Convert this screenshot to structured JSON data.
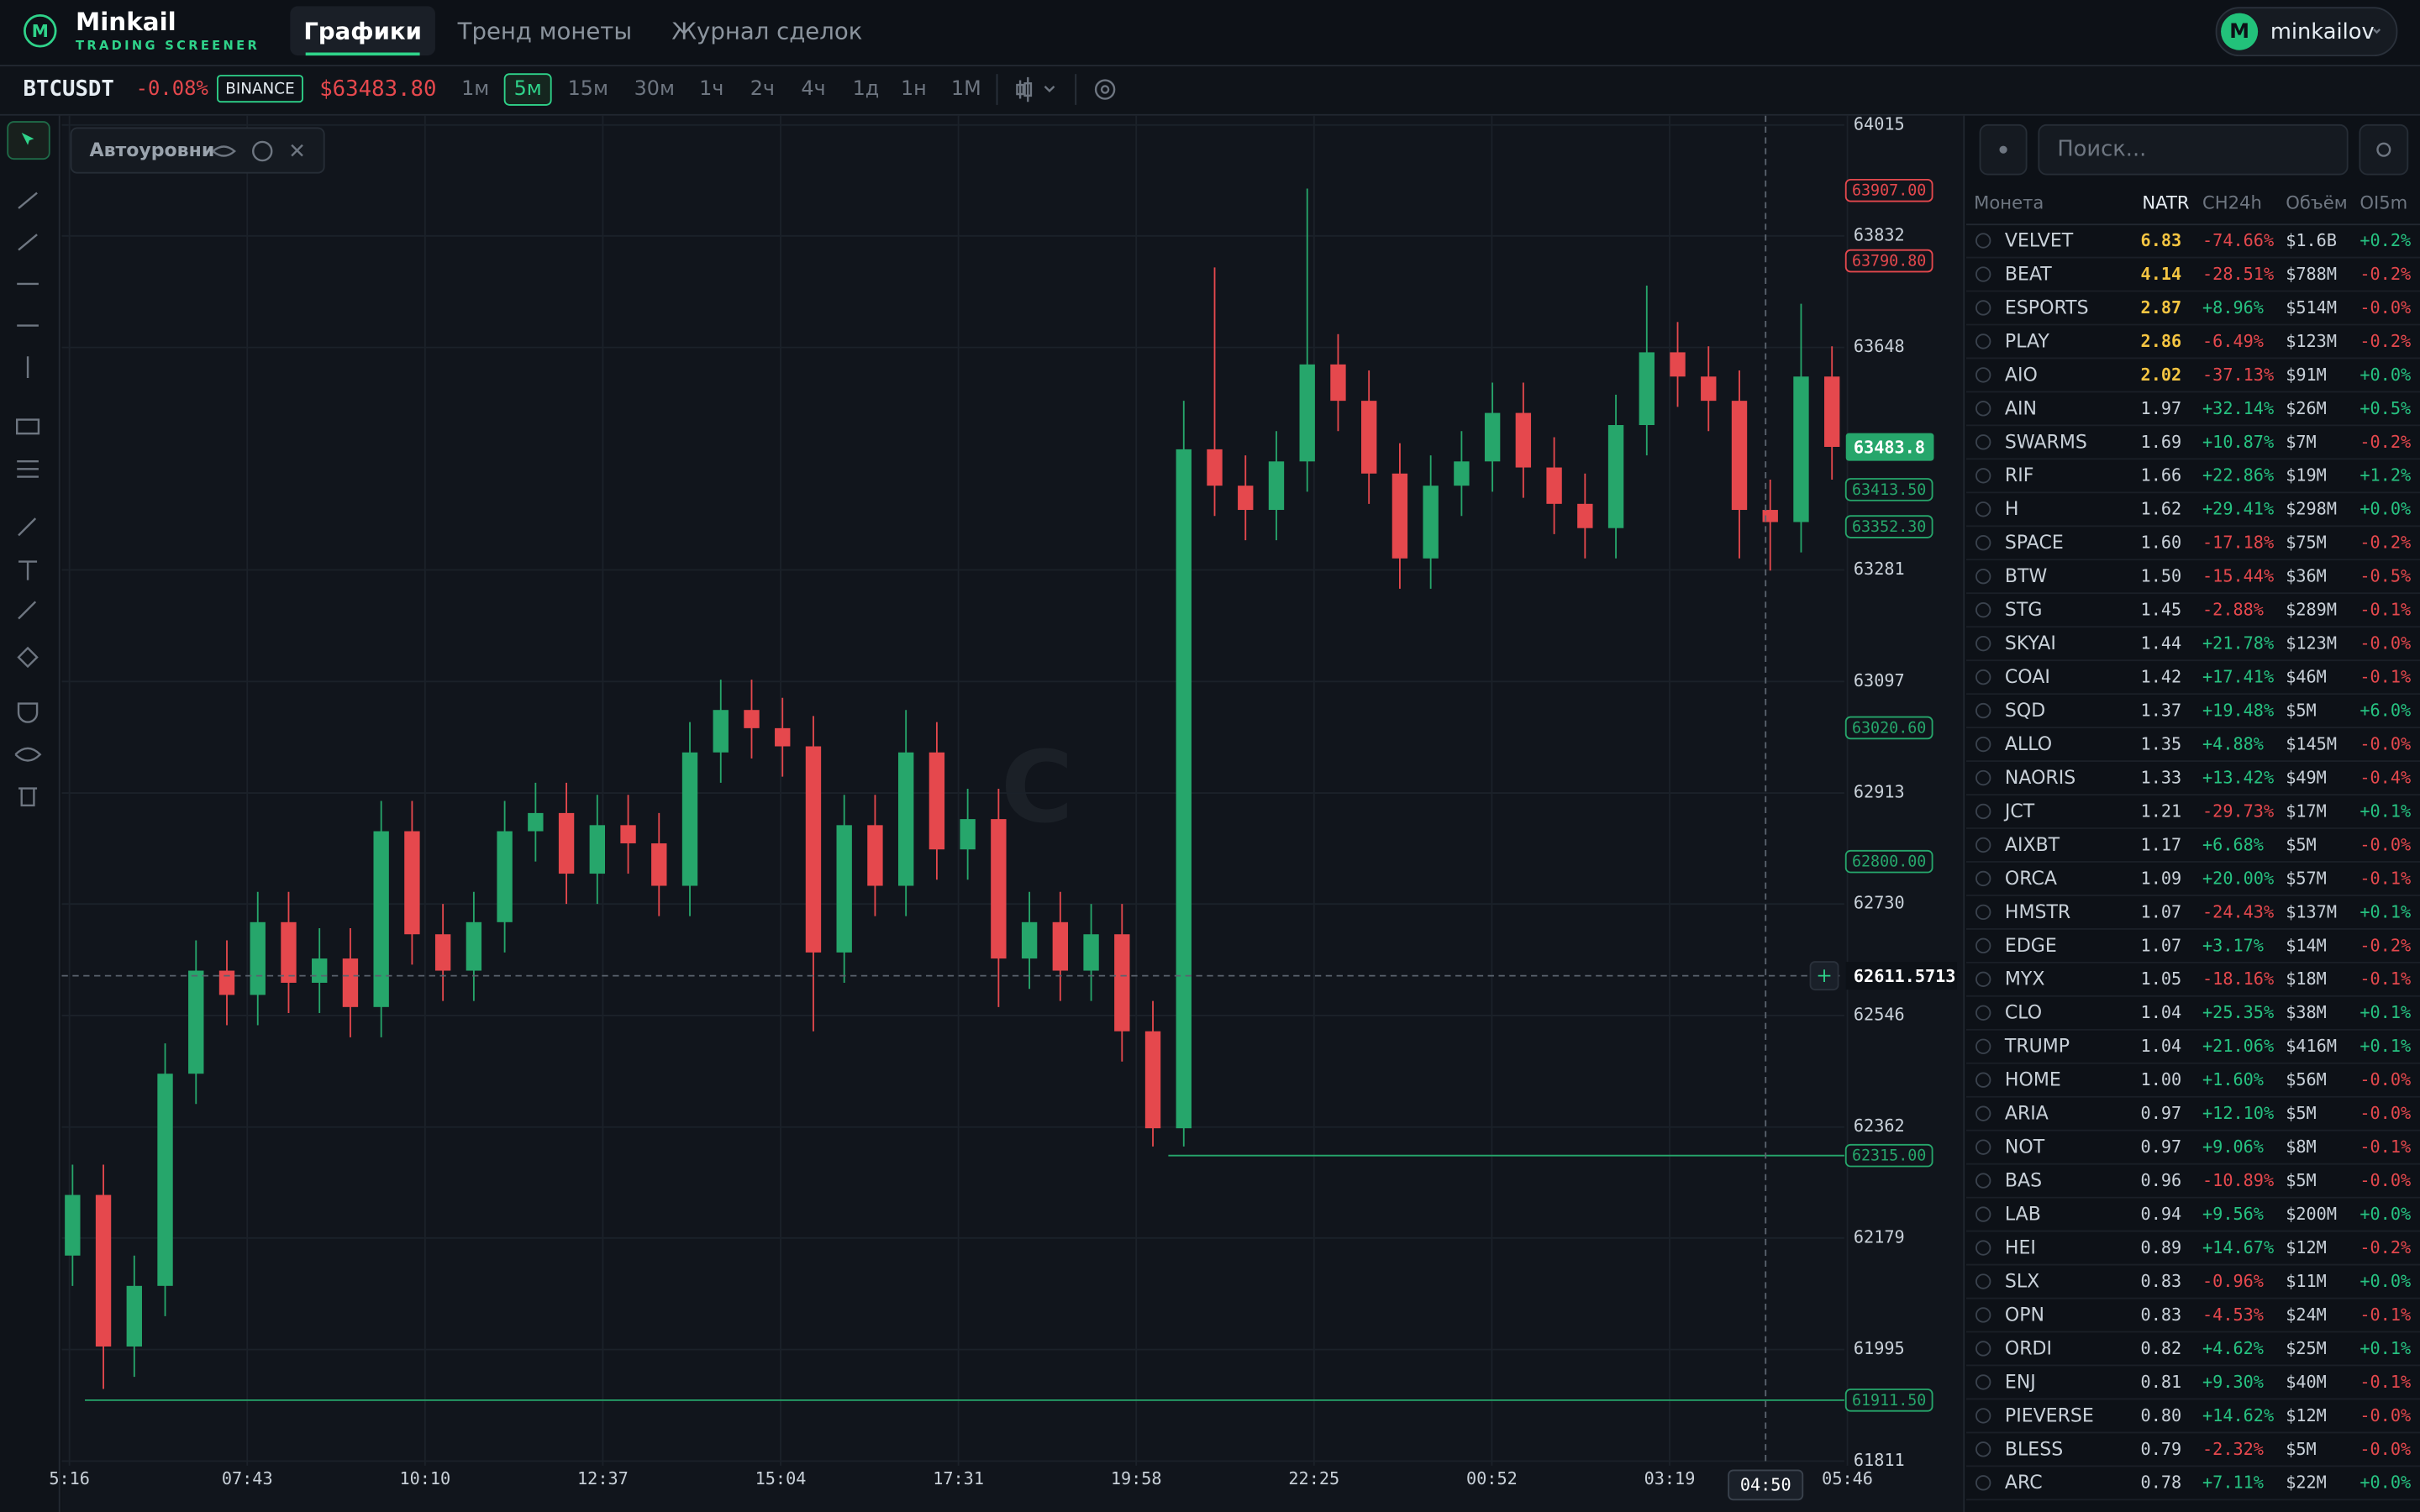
{
  "header": {
    "brand": "Minkail",
    "tagline": "TRADING SCREENER",
    "logo": "M",
    "tabs": [
      "Графики",
      "Тренд монеты",
      "Журнал сделок"
    ],
    "avatar": "M",
    "user": "minkailov"
  },
  "toolbar": {
    "symbol": "BTCUSDT",
    "change": "-0.08%",
    "exchange": "BINANCE",
    "price": "$63483.80",
    "intervals": [
      "1м",
      "5м",
      "15м",
      "30м",
      "1ч",
      "2ч",
      "4ч",
      "1д",
      "1н",
      "1М"
    ]
  },
  "indicator": "Автоуровни",
  "chart_data": {
    "type": "candlestick",
    "up_color": "#26a66b",
    "down_color": "#e5484d",
    "ylim": [
      61811,
      64015
    ],
    "yticks": [
      64015,
      63832,
      63648,
      63281,
      63097,
      62913,
      62730,
      62546,
      62362,
      62179,
      61995,
      61811
    ],
    "xticks": [
      "5:16",
      "07:43",
      "10:10",
      "12:37",
      "15:04",
      "17:31",
      "19:58",
      "22:25",
      "00:52",
      "03:19",
      "05:46"
    ],
    "open": [
      62150,
      62250,
      62000,
      62100,
      62450,
      62620,
      62580,
      62700,
      62600,
      62640,
      62560,
      62850,
      62680,
      62620,
      62700,
      62850,
      62880,
      62780,
      62860,
      62830,
      62760,
      62980,
      63050,
      63020,
      62990,
      62650,
      62860,
      62760,
      62980,
      62820,
      62870,
      62640,
      62700,
      62620,
      62680,
      62520,
      62360,
      63480,
      63420,
      63380,
      63460,
      63620,
      63560,
      63440,
      63300,
      63420,
      63460,
      63540,
      63450,
      63390,
      63350,
      63520,
      63640,
      63600,
      63560,
      63380,
      63360,
      63600
    ],
    "high": [
      62300,
      62300,
      62150,
      62500,
      62670,
      62670,
      62750,
      62750,
      62690,
      62690,
      62900,
      62900,
      62730,
      62750,
      62900,
      62930,
      62930,
      62910,
      62910,
      62880,
      63030,
      63100,
      63100,
      63070,
      63040,
      62910,
      62910,
      63050,
      63030,
      62920,
      62920,
      62750,
      62750,
      62730,
      62730,
      62570,
      63560,
      63780,
      63470,
      63510,
      63910,
      63670,
      63610,
      63490,
      63470,
      63510,
      63590,
      63590,
      63500,
      63440,
      63570,
      63750,
      63690,
      63650,
      63610,
      63430,
      63720,
      63650
    ],
    "low": [
      62100,
      61930,
      61950,
      62050,
      62400,
      62530,
      62530,
      62550,
      62550,
      62510,
      62510,
      62630,
      62570,
      62570,
      62650,
      62800,
      62730,
      62730,
      62780,
      62710,
      62710,
      62930,
      62970,
      62940,
      62520,
      62600,
      62710,
      62710,
      62770,
      62770,
      62560,
      62590,
      62570,
      62570,
      62470,
      62330,
      62330,
      63370,
      63330,
      63330,
      63410,
      63510,
      63390,
      63250,
      63250,
      63370,
      63410,
      63400,
      63340,
      63300,
      63300,
      63470,
      63550,
      63510,
      63300,
      63280,
      63310,
      63430
    ],
    "close": [
      62250,
      62000,
      62100,
      62450,
      62620,
      62580,
      62700,
      62600,
      62640,
      62560,
      62850,
      62680,
      62620,
      62700,
      62850,
      62880,
      62780,
      62860,
      62830,
      62760,
      62980,
      63050,
      63020,
      62990,
      62650,
      62860,
      62760,
      62980,
      62820,
      62870,
      62640,
      62700,
      62620,
      62680,
      62520,
      62360,
      63480,
      63420,
      63380,
      63460,
      63620,
      63560,
      63440,
      63300,
      63420,
      63460,
      63540,
      63450,
      63390,
      63350,
      63520,
      63640,
      63600,
      63560,
      63380,
      63360,
      63600,
      63484
    ],
    "last_price": 63483.8,
    "levels": [
      {
        "value": 63907,
        "label": "63907.00",
        "color": "#e5484d"
      },
      {
        "value": 63790.8,
        "label": "63790.80",
        "color": "#e5484d"
      },
      {
        "value": 63413.5,
        "label": "63413.50",
        "color": "#26a66b"
      },
      {
        "value": 63352.3,
        "label": "63352.30",
        "color": "#26a66b"
      },
      {
        "value": 63020.6,
        "label": "63020.60",
        "color": "#26a66b"
      },
      {
        "value": 62800,
        "label": "62800.00",
        "color": "#26a66b"
      },
      {
        "value": 62315,
        "label": "62315.00",
        "color": "#26a66b"
      },
      {
        "value": 61911.5,
        "label": "61911.50",
        "color": "#26a66b"
      }
    ],
    "crosshair": {
      "price": 62611.5713,
      "time": "04:50"
    }
  },
  "watchlist": {
    "search": "Поиск...",
    "columns": [
      "Монета",
      "NATR",
      "CH24h",
      "Объём",
      "OI5m"
    ],
    "rows": [
      [
        "VELVET",
        "6.83",
        "-74.66%",
        "$1.6B",
        "+0.2%"
      ],
      [
        "BEAT",
        "4.14",
        "-28.51%",
        "$788M",
        "-0.2%"
      ],
      [
        "ESPORTS",
        "2.87",
        "+8.96%",
        "$514M",
        "-0.0%"
      ],
      [
        "PLAY",
        "2.86",
        "-6.49%",
        "$123M",
        "-0.2%"
      ],
      [
        "AIO",
        "2.02",
        "-37.13%",
        "$91M",
        "+0.0%"
      ],
      [
        "AIN",
        "1.97",
        "+32.14%",
        "$26M",
        "+0.5%"
      ],
      [
        "SWARMS",
        "1.69",
        "+10.87%",
        "$7M",
        "-0.2%"
      ],
      [
        "RIF",
        "1.66",
        "+22.86%",
        "$19M",
        "+1.2%"
      ],
      [
        "H",
        "1.62",
        "+29.41%",
        "$298M",
        "+0.0%"
      ],
      [
        "SPACE",
        "1.60",
        "-17.18%",
        "$75M",
        "-0.2%"
      ],
      [
        "BTW",
        "1.50",
        "-15.44%",
        "$36M",
        "-0.5%"
      ],
      [
        "STG",
        "1.45",
        "-2.88%",
        "$289M",
        "-0.1%"
      ],
      [
        "SKYAI",
        "1.44",
        "+21.78%",
        "$123M",
        "-0.0%"
      ],
      [
        "COAI",
        "1.42",
        "+17.41%",
        "$46M",
        "-0.1%"
      ],
      [
        "SQD",
        "1.37",
        "+19.48%",
        "$5M",
        "+6.0%"
      ],
      [
        "ALLO",
        "1.35",
        "+4.88%",
        "$145M",
        "-0.0%"
      ],
      [
        "NAORIS",
        "1.33",
        "+13.42%",
        "$49M",
        "-0.4%"
      ],
      [
        "JCT",
        "1.21",
        "-29.73%",
        "$17M",
        "+0.1%"
      ],
      [
        "AIXBT",
        "1.17",
        "+6.68%",
        "$5M",
        "-0.0%"
      ],
      [
        "ORCA",
        "1.09",
        "+20.00%",
        "$57M",
        "-0.1%"
      ],
      [
        "HMSTR",
        "1.07",
        "-24.43%",
        "$137M",
        "+0.1%"
      ],
      [
        "EDGE",
        "1.07",
        "+3.17%",
        "$14M",
        "-0.2%"
      ],
      [
        "MYX",
        "1.05",
        "-18.16%",
        "$18M",
        "-0.1%"
      ],
      [
        "CLO",
        "1.04",
        "+25.35%",
        "$38M",
        "+0.1%"
      ],
      [
        "TRUMP",
        "1.04",
        "+21.06%",
        "$416M",
        "+0.1%"
      ],
      [
        "HOME",
        "1.00",
        "+1.60%",
        "$56M",
        "-0.0%"
      ],
      [
        "ARIA",
        "0.97",
        "+12.10%",
        "$5M",
        "-0.0%"
      ],
      [
        "NOT",
        "0.97",
        "+9.06%",
        "$8M",
        "-0.1%"
      ],
      [
        "BAS",
        "0.96",
        "-10.89%",
        "$5M",
        "-0.0%"
      ],
      [
        "LAB",
        "0.94",
        "+9.56%",
        "$200M",
        "+0.0%"
      ],
      [
        "HEI",
        "0.89",
        "+14.67%",
        "$12M",
        "-0.2%"
      ],
      [
        "SLX",
        "0.83",
        "-0.96%",
        "$11M",
        "+0.0%"
      ],
      [
        "OPN",
        "0.83",
        "-4.53%",
        "$24M",
        "-0.1%"
      ],
      [
        "ORDI",
        "0.82",
        "+4.62%",
        "$25M",
        "+0.1%"
      ],
      [
        "ENJ",
        "0.81",
        "+9.30%",
        "$40M",
        "-0.1%"
      ],
      [
        "PIEVERSE",
        "0.80",
        "+14.62%",
        "$12M",
        "-0.0%"
      ],
      [
        "BLESS",
        "0.79",
        "-2.32%",
        "$5M",
        "-0.0%"
      ],
      [
        "ARC",
        "0.78",
        "+7.11%",
        "$22M",
        "+0.0%"
      ]
    ]
  }
}
